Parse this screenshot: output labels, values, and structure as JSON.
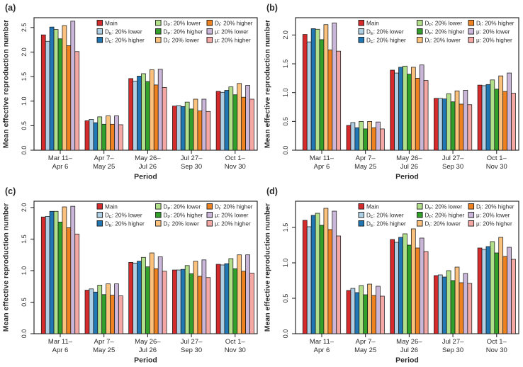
{
  "figure": {
    "type": "multi-panel-bar-figure",
    "panels_order": [
      "a",
      "b",
      "c",
      "d"
    ],
    "categories_lines": [
      [
        "Mar 11–",
        "Apr 6"
      ],
      [
        "Apr 7–",
        "May 25"
      ],
      [
        "May 26–",
        "Jul 26"
      ],
      [
        "Jul 27–",
        "Sep 30"
      ],
      [
        "Oct 1–",
        "Nov 30"
      ]
    ]
  },
  "legend": {
    "position": "top-right-inside",
    "columns": 3,
    "entries": [
      {
        "id": "main",
        "base": "Main",
        "sub": "",
        "rest": "",
        "color": "#d62b2c"
      },
      {
        "id": "de-lower",
        "base": "D",
        "sub": "E",
        "rest": ": 20% lower",
        "color": "#aecfe4"
      },
      {
        "id": "de-higher",
        "base": "D",
        "sub": "E",
        "rest": ": 20% higher",
        "color": "#2077b4"
      },
      {
        "id": "dp-lower",
        "base": "D",
        "sub": "P",
        "rest": ": 20% lower",
        "color": "#b2df8a"
      },
      {
        "id": "dp-higher",
        "base": "D",
        "sub": "P",
        "rest": ": 20% higher",
        "color": "#33a02c"
      },
      {
        "id": "di-lower",
        "base": "D",
        "sub": "I",
        "rest": ": 20% lower",
        "color": "#fcc27d"
      },
      {
        "id": "di-higher",
        "base": "D",
        "sub": "I",
        "rest": ": 20% higher",
        "color": "#ef8220"
      },
      {
        "id": "mu-lower",
        "base": "μ",
        "sub": "",
        "rest": ": 20% lower",
        "color": "#cab6d8"
      },
      {
        "id": "mu-higher",
        "base": "μ",
        "sub": "",
        "rest": ": 20% higher",
        "color": "#f5a7a3"
      }
    ]
  },
  "chart_data": [
    {
      "type": "bar",
      "panel_id": "a",
      "panel_label": "(a)",
      "xlabel": "Period",
      "ylabel": "Mean effective reproduction number",
      "ylim": [
        0,
        2.7
      ],
      "yticks": [
        0,
        0.5,
        1.0,
        1.5,
        2.0,
        2.5
      ],
      "grid": false,
      "categories": [
        "Mar 11–Apr 6",
        "Apr 7–May 25",
        "May 26–Jul 26",
        "Jul 27–Sep 30",
        "Oct 1–Nov 30"
      ],
      "series": [
        {
          "name": "Main",
          "values": [
            2.35,
            0.6,
            1.46,
            0.9,
            1.2
          ]
        },
        {
          "name": "D_E: 20% lower",
          "values": [
            2.22,
            0.63,
            1.41,
            0.91,
            1.18
          ]
        },
        {
          "name": "D_E: 20% higher",
          "values": [
            2.51,
            0.56,
            1.51,
            0.89,
            1.22
          ]
        },
        {
          "name": "D_P: 20% lower",
          "values": [
            2.46,
            0.68,
            1.56,
            0.98,
            1.29
          ]
        },
        {
          "name": "D_P: 20% higher",
          "values": [
            2.27,
            0.53,
            1.4,
            0.84,
            1.13
          ]
        },
        {
          "name": "D_I: 20% lower",
          "values": [
            2.54,
            0.7,
            1.64,
            1.04,
            1.36
          ]
        },
        {
          "name": "D_I: 20% higher",
          "values": [
            2.13,
            0.53,
            1.33,
            0.8,
            1.08
          ]
        },
        {
          "name": "μ: 20% lower",
          "values": [
            2.63,
            0.7,
            1.65,
            1.04,
            1.32
          ]
        },
        {
          "name": "μ: 20% higher",
          "values": [
            2.01,
            0.52,
            1.28,
            0.79,
            1.04
          ]
        }
      ]
    },
    {
      "type": "bar",
      "panel_id": "b",
      "panel_label": "(b)",
      "xlabel": "Period",
      "ylabel": "Mean effective reproduction number",
      "ylim": [
        0,
        2.3
      ],
      "yticks": [
        0,
        0.5,
        1.0,
        1.5,
        2.0
      ],
      "grid": false,
      "categories": [
        "Mar 11–Apr 6",
        "Apr 7–May 25",
        "May 26–Jul 26",
        "Jul 27–Sep 30",
        "Oct 1–Nov 30"
      ],
      "series": [
        {
          "name": "Main",
          "values": [
            2.01,
            0.43,
            1.39,
            0.9,
            1.13
          ]
        },
        {
          "name": "D_E: 20% lower",
          "values": [
            1.88,
            0.48,
            1.34,
            0.9,
            1.12
          ]
        },
        {
          "name": "D_E: 20% higher",
          "values": [
            2.11,
            0.39,
            1.44,
            0.89,
            1.14
          ]
        },
        {
          "name": "D_P: 20% lower",
          "values": [
            2.1,
            0.5,
            1.46,
            0.98,
            1.22
          ]
        },
        {
          "name": "D_P: 20% higher",
          "values": [
            1.92,
            0.37,
            1.32,
            0.84,
            1.06
          ]
        },
        {
          "name": "D_I: 20% lower",
          "values": [
            2.18,
            0.5,
            1.44,
            1.03,
            1.29
          ]
        },
        {
          "name": "D_I: 20% higher",
          "values": [
            1.74,
            0.39,
            1.25,
            0.8,
            1.02
          ]
        },
        {
          "name": "μ: 20% lower",
          "values": [
            2.21,
            0.49,
            1.48,
            1.04,
            1.34
          ]
        },
        {
          "name": "μ: 20% higher",
          "values": [
            1.72,
            0.37,
            1.21,
            0.79,
            0.99
          ]
        }
      ]
    },
    {
      "type": "bar",
      "panel_id": "c",
      "panel_label": "(c)",
      "xlabel": "Period",
      "ylabel": "Mean effective reproduction number",
      "ylim": [
        0,
        2.1
      ],
      "yticks": [
        0,
        0.5,
        1.0,
        1.5,
        2.0
      ],
      "grid": false,
      "categories": [
        "Mar 11–Apr 6",
        "Apr 7–May 25",
        "May 26–Jul 26",
        "Jul 27–Sep 30",
        "Oct 1–Nov 30"
      ],
      "series": [
        {
          "name": "Main",
          "values": [
            1.85,
            0.69,
            1.13,
            1.01,
            1.1
          ]
        },
        {
          "name": "D_E: 20% lower",
          "values": [
            1.86,
            0.71,
            1.12,
            1.01,
            1.09
          ]
        },
        {
          "name": "D_E: 20% higher",
          "values": [
            1.94,
            0.66,
            1.15,
            1.02,
            1.11
          ]
        },
        {
          "name": "D_P: 20% lower",
          "values": [
            1.94,
            0.77,
            1.21,
            1.08,
            1.19
          ]
        },
        {
          "name": "D_P: 20% higher",
          "values": [
            1.77,
            0.62,
            1.06,
            0.95,
            1.03
          ]
        },
        {
          "name": "D_I: 20% lower",
          "values": [
            2.01,
            0.79,
            1.28,
            1.15,
            1.25
          ]
        },
        {
          "name": "D_I: 20% higher",
          "values": [
            1.68,
            0.61,
            1.03,
            0.91,
            0.99
          ]
        },
        {
          "name": "μ: 20% lower",
          "values": [
            2.02,
            0.79,
            1.22,
            1.17,
            1.25
          ]
        },
        {
          "name": "μ: 20% higher",
          "values": [
            1.58,
            0.6,
            0.99,
            0.89,
            0.96
          ]
        }
      ]
    },
    {
      "type": "bar",
      "panel_id": "d",
      "panel_label": "(d)",
      "xlabel": "Period",
      "ylabel": "Mean effective reproduction number",
      "ylim": [
        0,
        1.87
      ],
      "yticks": [
        0,
        0.5,
        1.0,
        1.5
      ],
      "grid": false,
      "categories": [
        "Mar 11–Apr 6",
        "Apr 7–May 25",
        "May 26–Jul 26",
        "Jul 27–Sep 30",
        "Oct 1–Nov 30"
      ],
      "series": [
        {
          "name": "Main",
          "values": [
            1.6,
            0.61,
            1.33,
            0.82,
            1.21
          ]
        },
        {
          "name": "D_E: 20% lower",
          "values": [
            1.51,
            0.64,
            1.29,
            0.83,
            1.19
          ]
        },
        {
          "name": "D_E: 20% higher",
          "values": [
            1.67,
            0.58,
            1.36,
            0.8,
            1.23
          ]
        },
        {
          "name": "D_P: 20% lower",
          "values": [
            1.7,
            0.68,
            1.41,
            0.89,
            1.3
          ]
        },
        {
          "name": "D_P: 20% higher",
          "values": [
            1.53,
            0.55,
            1.25,
            0.75,
            1.14
          ]
        },
        {
          "name": "D_I: 20% lower",
          "values": [
            1.77,
            0.7,
            1.48,
            0.94,
            1.36
          ]
        },
        {
          "name": "D_I: 20% higher",
          "values": [
            1.47,
            0.54,
            1.21,
            0.72,
            1.09
          ]
        },
        {
          "name": "μ: 20% lower",
          "values": [
            1.73,
            0.67,
            1.35,
            0.85,
            1.22
          ]
        },
        {
          "name": "μ: 20% higher",
          "values": [
            1.38,
            0.53,
            1.16,
            0.71,
            1.05
          ]
        }
      ]
    }
  ],
  "style": {
    "bar_stroke": "#1a1a1a",
    "axis_color": "#1a1a1a",
    "text_color": "#2b2b2b"
  }
}
